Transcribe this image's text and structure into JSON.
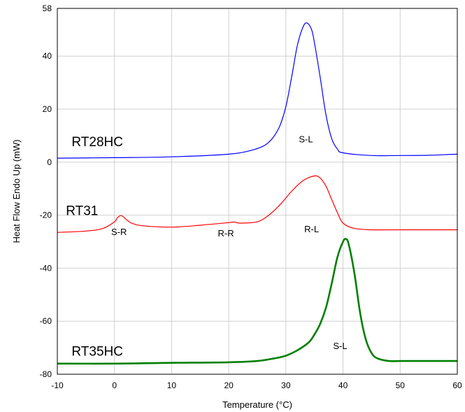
{
  "chart_data": {
    "type": "line",
    "xlabel": "Temperature (°C)",
    "ylabel": "Heat Flow Endo Up (mW)",
    "xlim": [
      -10,
      60
    ],
    "ylim": [
      -80,
      58
    ],
    "x_ticks": [
      -10,
      0,
      10,
      20,
      30,
      40,
      50,
      60
    ],
    "y_ticks": [
      -80,
      -60,
      -40,
      -20,
      0,
      20,
      40,
      58
    ],
    "grid": true,
    "legend": "none",
    "series": [
      {
        "name": "RT28HC",
        "color": "#0000ff",
        "x": [
          -10,
          0,
          10,
          20,
          24,
          26,
          27,
          28,
          29,
          30,
          31,
          32,
          33,
          33.7,
          34.5,
          35,
          36,
          37,
          38,
          39,
          40,
          45,
          50,
          55,
          60
        ],
        "y": [
          1.5,
          1.7,
          2.0,
          3.0,
          4.5,
          6.0,
          7.5,
          10.0,
          14.0,
          21.0,
          32.0,
          44.0,
          51.0,
          52.5,
          50.0,
          45.0,
          32.0,
          18.0,
          9.0,
          5.0,
          3.5,
          2.5,
          2.5,
          2.6,
          3.0
        ]
      },
      {
        "name": "RT31",
        "color": "#ff0000",
        "x": [
          -10,
          -5,
          -2,
          0,
          0.5,
          1,
          1.5,
          2,
          3,
          5,
          10,
          15,
          20,
          21,
          22,
          25,
          27,
          29,
          31,
          33,
          35,
          36,
          37,
          38,
          39,
          40,
          42,
          45,
          50,
          55,
          60
        ],
        "y": [
          -26.5,
          -26,
          -25,
          -22.5,
          -21,
          -20.2,
          -20.5,
          -21.5,
          -23,
          -24,
          -24.5,
          -23.8,
          -22.8,
          -22.6,
          -23,
          -22.5,
          -20,
          -16,
          -11,
          -7,
          -5.2,
          -6,
          -9,
          -14,
          -19,
          -23,
          -25,
          -25.5,
          -25.5,
          -25.5,
          -25.5
        ]
      },
      {
        "name": "RT35HC",
        "color": "#008000",
        "x": [
          -10,
          0,
          10,
          20,
          25,
          28,
          30,
          32,
          34,
          35,
          36,
          37,
          38,
          39,
          40,
          40.5,
          41,
          42,
          43,
          44,
          45,
          46,
          48,
          50,
          55,
          60
        ],
        "y": [
          -76,
          -76,
          -75.7,
          -75.5,
          -75,
          -74,
          -73,
          -71,
          -68,
          -65,
          -61,
          -55,
          -46,
          -36,
          -30,
          -29,
          -31,
          -42,
          -57,
          -67,
          -72,
          -74,
          -75,
          -75,
          -75,
          -75
        ]
      }
    ],
    "series_labels": [
      {
        "text": "RT28HC",
        "x": -7.5,
        "y": 6
      },
      {
        "text": "RT31",
        "x": -8.5,
        "y": -20
      },
      {
        "text": "RT35HC",
        "x": -7.5,
        "y": -73
      }
    ],
    "annotations": [
      {
        "text": "S-L",
        "x": 33.5,
        "y": 7.5
      },
      {
        "text": "S-R",
        "x": 0.8,
        "y": -27.5
      },
      {
        "text": "R-R",
        "x": 19.5,
        "y": -28
      },
      {
        "text": "R-L",
        "x": 34.5,
        "y": -26.5
      },
      {
        "text": "S-L",
        "x": 39.5,
        "y": -70.5
      }
    ]
  }
}
